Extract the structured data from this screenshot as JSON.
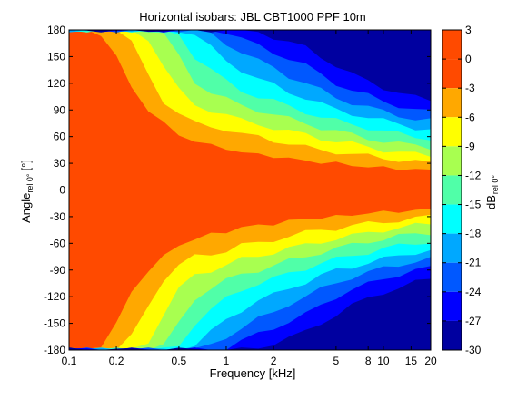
{
  "chart_data": {
    "type": "heatmap",
    "title": "Horizontal isobars: JBL  CBT1000 PPF  10m",
    "xlabel": "Frequency [kHz]",
    "ylabel_main": "Angle",
    "ylabel_sub": "rel 0°",
    "ylabel_unit": "[°]",
    "x_scale": "log",
    "xlim": [
      0.1,
      20
    ],
    "ylim": [
      -180,
      180
    ],
    "x_ticks": [
      {
        "value": 0.1,
        "label": "0.1"
      },
      {
        "value": 0.2,
        "label": "0.2"
      },
      {
        "value": 0.5,
        "label": "0.5"
      },
      {
        "value": 1,
        "label": "1"
      },
      {
        "value": 2,
        "label": "2"
      },
      {
        "value": 5,
        "label": "5"
      },
      {
        "value": 8,
        "label": "8"
      },
      {
        "value": 10,
        "label": "10"
      },
      {
        "value": 15,
        "label": "15"
      },
      {
        "value": 20,
        "label": "20"
      }
    ],
    "y_ticks": [
      {
        "value": 180,
        "label": "180"
      },
      {
        "value": 150,
        "label": "150"
      },
      {
        "value": 120,
        "label": "120"
      },
      {
        "value": 90,
        "label": "90"
      },
      {
        "value": 60,
        "label": "60"
      },
      {
        "value": 30,
        "label": "30"
      },
      {
        "value": 0,
        "label": "0"
      },
      {
        "value": -30,
        "label": "-30"
      },
      {
        "value": -60,
        "label": "-60"
      },
      {
        "value": -90,
        "label": "-90"
      },
      {
        "value": -120,
        "label": "-120"
      },
      {
        "value": -150,
        "label": "-150"
      },
      {
        "value": -180,
        "label": "-180"
      }
    ],
    "colorbar": {
      "label_main": "dB",
      "label_sub": "rel 0°",
      "range": [
        -30,
        3
      ],
      "ticks": [
        {
          "value": 3,
          "label": "3"
        },
        {
          "value": 0,
          "label": "0"
        },
        {
          "value": -3,
          "label": "-3"
        },
        {
          "value": -6,
          "label": "-6"
        },
        {
          "value": -9,
          "label": "-9"
        },
        {
          "value": -12,
          "label": "-12"
        },
        {
          "value": -15,
          "label": "-15"
        },
        {
          "value": -18,
          "label": "-18"
        },
        {
          "value": -21,
          "label": "-21"
        },
        {
          "value": -24,
          "label": "-24"
        },
        {
          "value": -27,
          "label": "-27"
        },
        {
          "value": -30,
          "label": "-30"
        }
      ],
      "bands": [
        {
          "low": 0,
          "high": 3,
          "color": "#ff4a00"
        },
        {
          "low": -3,
          "high": 0,
          "color": "#ff4a00"
        },
        {
          "low": -6,
          "high": -3,
          "color": "#ffa800"
        },
        {
          "low": -9,
          "high": -6,
          "color": "#ffff00"
        },
        {
          "low": -12,
          "high": -9,
          "color": "#a8ff50"
        },
        {
          "low": -15,
          "high": -12,
          "color": "#50ffa8"
        },
        {
          "low": -18,
          "high": -15,
          "color": "#00ffff"
        },
        {
          "low": -21,
          "high": -18,
          "color": "#00a8ff"
        },
        {
          "low": -24,
          "high": -21,
          "color": "#0058ff"
        },
        {
          "low": -27,
          "high": -24,
          "color": "#0000ff"
        },
        {
          "low": -30,
          "high": -27,
          "color": "#0000a0"
        }
      ]
    },
    "isobar_half_width_deg": [
      {
        "f": 0.1,
        "widths": [
          180,
          180,
          180,
          180,
          180,
          180,
          180,
          180,
          180
        ]
      },
      {
        "f": 0.13,
        "widths": [
          180,
          180,
          180,
          180,
          180,
          180,
          180,
          180,
          180
        ]
      },
      {
        "f": 0.16,
        "widths": [
          175,
          180,
          180,
          180,
          180,
          180,
          180,
          180,
          180
        ]
      },
      {
        "f": 0.2,
        "widths": [
          150,
          180,
          180,
          180,
          180,
          180,
          180,
          180,
          180
        ]
      },
      {
        "f": 0.25,
        "widths": [
          115,
          165,
          180,
          180,
          180,
          180,
          180,
          180,
          180
        ]
      },
      {
        "f": 0.32,
        "widths": [
          90,
          130,
          170,
          180,
          180,
          180,
          180,
          180,
          180
        ]
      },
      {
        "f": 0.4,
        "widths": [
          75,
          100,
          140,
          175,
          180,
          180,
          180,
          180,
          180
        ]
      },
      {
        "f": 0.5,
        "widths": [
          62,
          85,
          112,
          150,
          175,
          180,
          180,
          180,
          180
        ]
      },
      {
        "f": 0.63,
        "widths": [
          55,
          75,
          95,
          122,
          150,
          175,
          180,
          180,
          180
        ]
      },
      {
        "f": 0.8,
        "widths": [
          50,
          72,
          90,
          110,
          135,
          160,
          175,
          180,
          180
        ]
      },
      {
        "f": 1,
        "widths": [
          47,
          68,
          85,
          102,
          122,
          145,
          165,
          178,
          180
        ]
      },
      {
        "f": 1.25,
        "widths": [
          42,
          62,
          78,
          95,
          112,
          135,
          155,
          170,
          180
        ]
      },
      {
        "f": 1.6,
        "widths": [
          40,
          60,
          74,
          90,
          105,
          125,
          145,
          162,
          178
        ]
      },
      {
        "f": 2,
        "widths": [
          38,
          56,
          70,
          85,
          100,
          118,
          138,
          155,
          172
        ]
      },
      {
        "f": 2.5,
        "widths": [
          35,
          52,
          66,
          80,
          94,
          110,
          128,
          148,
          166
        ]
      },
      {
        "f": 3.2,
        "widths": [
          33,
          48,
          62,
          75,
          88,
          104,
          120,
          140,
          160
        ]
      },
      {
        "f": 4,
        "widths": [
          31,
          45,
          58,
          70,
          82,
          97,
          112,
          130,
          150
        ]
      },
      {
        "f": 5,
        "widths": [
          30,
          43,
          55,
          66,
          78,
          90,
          104,
          120,
          140
        ]
      },
      {
        "f": 6.3,
        "widths": [
          28,
          40,
          52,
          62,
          74,
          86,
          98,
          112,
          130
        ]
      },
      {
        "f": 8,
        "widths": [
          26,
          38,
          48,
          58,
          70,
          82,
          93,
          106,
          122
        ]
      },
      {
        "f": 10,
        "widths": [
          25,
          36,
          45,
          55,
          66,
          78,
          88,
          100,
          115
        ]
      },
      {
        "f": 12.5,
        "widths": [
          24,
          34,
          43,
          52,
          63,
          74,
          84,
          95,
          110
        ]
      },
      {
        "f": 16,
        "widths": [
          23,
          32,
          40,
          50,
          60,
          70,
          80,
          90,
          104
        ]
      },
      {
        "f": 20,
        "widths": [
          22,
          30,
          38,
          48,
          58,
          68,
          78,
          88,
          100
        ]
      }
    ]
  }
}
